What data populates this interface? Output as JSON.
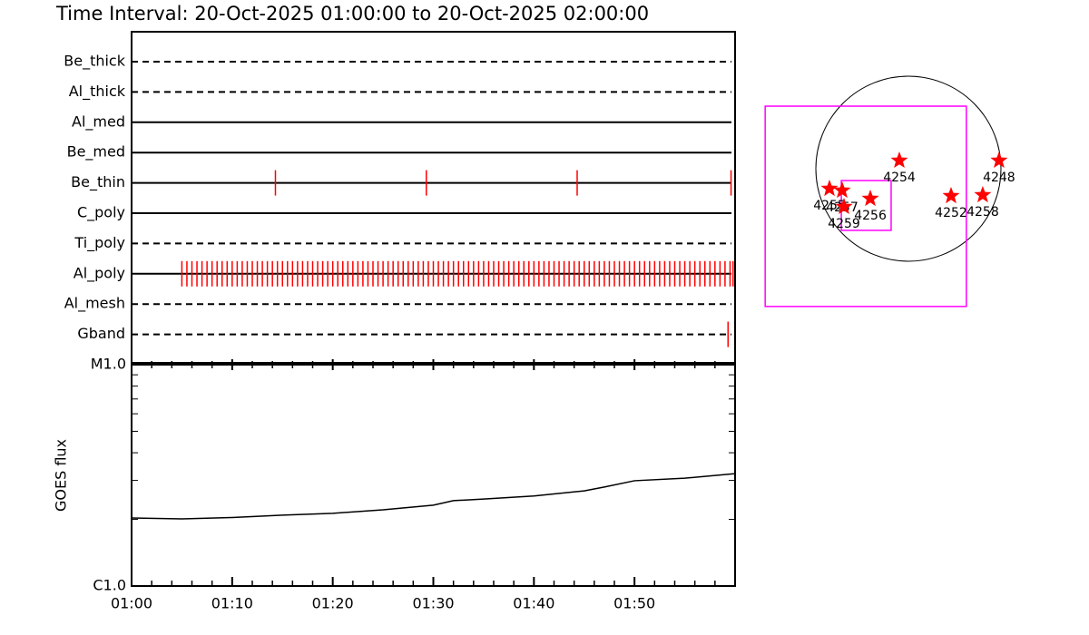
{
  "chart_data": [
    {
      "type": "timeline",
      "title": "Time Interval: 20-Oct-2025 01:00:00 to 20-Oct-2025 02:00:00",
      "xlim": [
        0,
        60
      ],
      "event_color": "#ff0000",
      "rows": [
        {
          "name": "Be_thick",
          "style": "dashed",
          "times": []
        },
        {
          "name": "Al_thick",
          "style": "dashed",
          "times": []
        },
        {
          "name": "Al_med",
          "style": "solid",
          "times": []
        },
        {
          "name": "Be_med",
          "style": "solid",
          "times": []
        },
        {
          "name": "Be_thin",
          "style": "solid",
          "times": [
            14.3,
            29.3,
            44.3,
            59.6
          ]
        },
        {
          "name": "C_poly",
          "style": "solid",
          "times": []
        },
        {
          "name": "Ti_poly",
          "style": "dashed",
          "times": []
        },
        {
          "name": "Al_poly",
          "style": "solid",
          "times": [
            5.0,
            5.5,
            6.0,
            6.5,
            7.0,
            7.5,
            8.0,
            8.5,
            9.0,
            9.5,
            10.0,
            10.5,
            11.0,
            11.5,
            12.0,
            12.5,
            13.0,
            13.5,
            14.0,
            14.5,
            15.0,
            15.5,
            16.0,
            16.5,
            17.0,
            17.5,
            18.0,
            18.5,
            19.0,
            19.5,
            20.0,
            20.5,
            21.0,
            21.5,
            22.0,
            22.5,
            23.0,
            23.5,
            24.0,
            24.5,
            25.0,
            25.5,
            26.0,
            26.5,
            27.0,
            27.5,
            28.0,
            28.5,
            29.0,
            29.5,
            30.0,
            30.5,
            31.0,
            31.5,
            32.0,
            32.5,
            33.0,
            33.5,
            34.0,
            34.5,
            35.0,
            35.5,
            36.0,
            36.5,
            37.0,
            37.5,
            38.0,
            38.5,
            39.0,
            39.5,
            40.0,
            40.5,
            41.0,
            41.5,
            42.0,
            42.5,
            43.0,
            43.5,
            44.0,
            44.5,
            45.0,
            45.5,
            46.0,
            46.5,
            47.0,
            47.5,
            48.0,
            48.5,
            49.0,
            49.5,
            50.0,
            50.5,
            51.0,
            51.5,
            52.0,
            52.5,
            53.0,
            53.5,
            54.0,
            54.5,
            55.0,
            55.5,
            56.0,
            56.5,
            57.0,
            57.5,
            58.0,
            58.5,
            59.0,
            59.5,
            59.8
          ]
        },
        {
          "name": "Al_mesh",
          "style": "dashed",
          "times": []
        },
        {
          "name": "Gband",
          "style": "dashed",
          "times": [
            59.3
          ]
        }
      ]
    },
    {
      "type": "line",
      "ylabel": "GOES flux",
      "log_scale": true,
      "color": "#000000",
      "xlim": [
        0,
        60
      ],
      "xticks": [
        {
          "value": 0,
          "label": "01:00"
        },
        {
          "value": 10,
          "label": "01:10"
        },
        {
          "value": 20,
          "label": "01:20"
        },
        {
          "value": 30,
          "label": "01:30"
        },
        {
          "value": 40,
          "label": "01:40"
        },
        {
          "value": 50,
          "label": "01:50"
        }
      ],
      "xminorticks": [
        2,
        4,
        6,
        8,
        12,
        14,
        16,
        18,
        22,
        24,
        26,
        28,
        32,
        34,
        36,
        38,
        42,
        44,
        46,
        48,
        52,
        54,
        56,
        58
      ],
      "ylim": [
        1e-06,
        1e-05
      ],
      "yticks": [
        {
          "value": 1e-06,
          "label": "C1.0"
        },
        {
          "value": 1e-05,
          "label": "M1.0"
        }
      ],
      "yminorticks": [
        2e-06,
        3e-06,
        4e-06,
        5e-06,
        6e-06,
        7e-06,
        8e-06,
        9e-06
      ],
      "x": [
        0,
        5,
        10,
        15,
        20,
        25,
        30,
        32,
        35,
        40,
        45,
        47,
        50,
        55,
        60
      ],
      "values": [
        2.03e-06,
        2.01e-06,
        2.04e-06,
        2.09e-06,
        2.13e-06,
        2.21e-06,
        2.32e-06,
        2.43e-06,
        2.47e-06,
        2.55e-06,
        2.69e-06,
        2.8e-06,
        2.99e-06,
        3.07e-06,
        3.22e-06
      ]
    },
    {
      "type": "map",
      "disk_radius": 970,
      "box_color": "#ff00ff",
      "point_color": "#ff0000",
      "boxes": [
        [
          -1501,
          607,
          -1444,
          656
        ],
        [
          -703,
          -181,
          -646,
          -124
        ]
      ],
      "points": [
        {
          "label": "4248",
          "x": 950,
          "y": 86
        },
        {
          "label": "4254",
          "x": -95,
          "y": 86
        },
        {
          "label": "4252",
          "x": 447,
          "y": -285
        },
        {
          "label": "4258",
          "x": 779,
          "y": -276
        },
        {
          "label": "4256",
          "x": -399,
          "y": -314
        },
        {
          "label": "4255",
          "x": -827,
          "y": -209
        },
        {
          "label": "4257",
          "x": -694,
          "y": -228
        },
        {
          "label": "4259",
          "x": -675,
          "y": -399
        }
      ]
    }
  ]
}
